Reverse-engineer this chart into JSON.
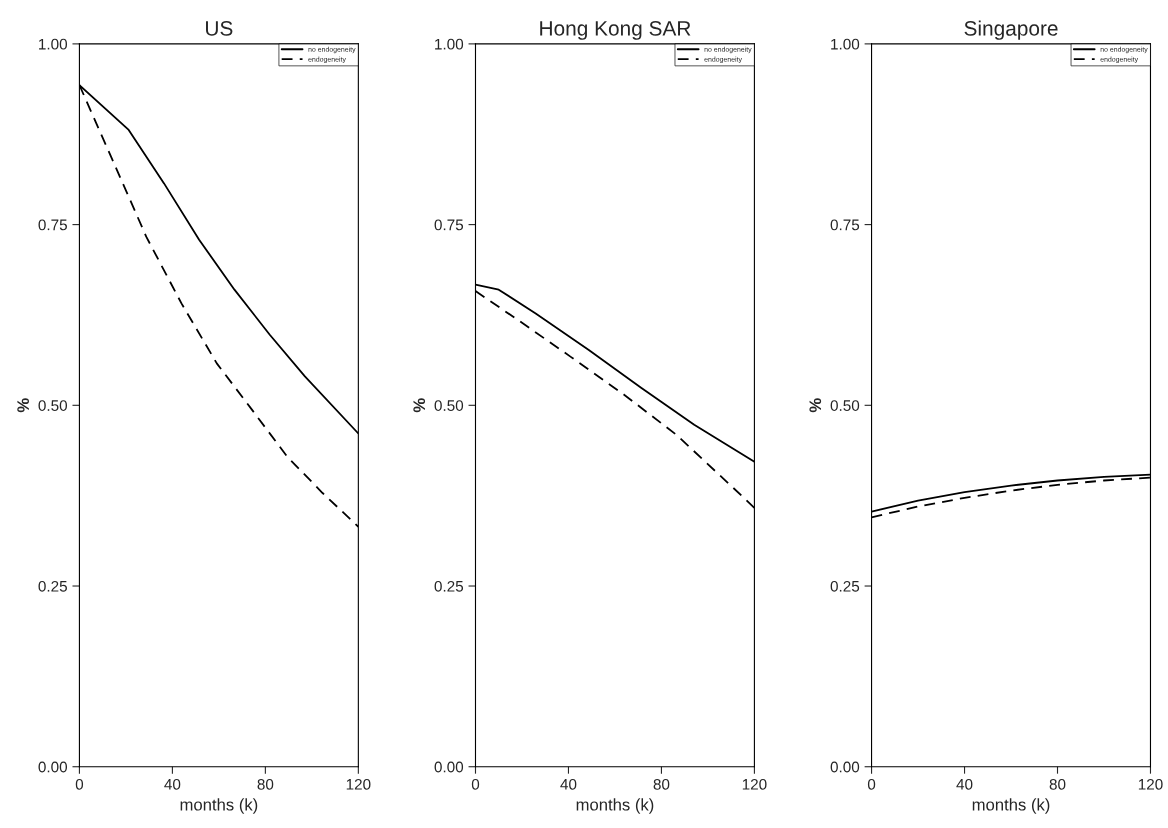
{
  "chart_data": [
    {
      "type": "line",
      "title": "US",
      "xlabel": "months (k)",
      "ylabel": "%",
      "xlim": [
        0,
        120
      ],
      "xticks": [
        0,
        40,
        80,
        120
      ],
      "ylim": [
        0,
        1
      ],
      "yticks": [
        {
          "value": 0,
          "label": "0.00"
        },
        {
          "value": 0.25,
          "label": "0.25"
        },
        {
          "value": 0.5,
          "label": "0.50"
        },
        {
          "value": 0.75,
          "label": "0.75"
        },
        {
          "value": 1,
          "label": "1.00"
        }
      ],
      "grid": false,
      "legend": "top right",
      "series": [
        {
          "name": "no endogeneity",
          "color": "#000000",
          "line_style": "solid",
          "x": [
            0,
            21.2,
            36.4,
            51.5,
            66.7,
            81.8,
            97,
            120
          ],
          "values": [
            0.943,
            0.881,
            0.807,
            0.729,
            0.66,
            0.598,
            0.54,
            0.461
          ]
        },
        {
          "name": "endogeneity",
          "color": "#000000",
          "line_style": "dashed",
          "x": [
            0,
            13.6,
            28.8,
            43.9,
            59.1,
            74.2,
            89.4,
            104.5,
            120
          ],
          "values": [
            0.943,
            0.844,
            0.733,
            0.641,
            0.558,
            0.494,
            0.429,
            0.379,
            0.332
          ]
        }
      ]
    },
    {
      "type": "line",
      "title": "Hong Kong SAR",
      "xlabel": "months (k)",
      "ylabel": "%",
      "xlim": [
        0,
        120
      ],
      "xticks": [
        0,
        40,
        80,
        120
      ],
      "ylim": [
        0,
        1
      ],
      "yticks": [
        {
          "value": 0,
          "label": "0.00"
        },
        {
          "value": 0.25,
          "label": "0.25"
        },
        {
          "value": 0.5,
          "label": "0.50"
        },
        {
          "value": 0.75,
          "label": "0.75"
        },
        {
          "value": 1,
          "label": "1.00"
        }
      ],
      "grid": false,
      "legend": "top right",
      "series": [
        {
          "name": "no endogeneity",
          "color": "#000000",
          "line_style": "solid",
          "x": [
            0,
            10,
            25.9,
            48.6,
            71.4,
            94.1,
            120
          ],
          "values": [
            0.667,
            0.66,
            0.627,
            0.577,
            0.524,
            0.473,
            0.422
          ]
        },
        {
          "name": "endogeneity",
          "color": "#000000",
          "line_style": "dashed",
          "x": [
            0,
            18.3,
            41,
            63.8,
            86.5,
            115.5,
            120
          ],
          "values": [
            0.658,
            0.618,
            0.567,
            0.515,
            0.459,
            0.372,
            0.358
          ]
        }
      ]
    },
    {
      "type": "line",
      "title": "Singapore",
      "xlabel": "months (k)",
      "ylabel": "%",
      "xlim": [
        0,
        120
      ],
      "xticks": [
        0,
        40,
        80,
        120
      ],
      "ylim": [
        0,
        1
      ],
      "yticks": [
        {
          "value": 0,
          "label": "0.00"
        },
        {
          "value": 0.25,
          "label": "0.25"
        },
        {
          "value": 0.5,
          "label": "0.50"
        },
        {
          "value": 0.75,
          "label": "0.75"
        },
        {
          "value": 1,
          "label": "1.00"
        }
      ],
      "grid": false,
      "legend": "top right",
      "series": [
        {
          "name": "no endogeneity",
          "color": "#000000",
          "line_style": "solid",
          "x": [
            0,
            20,
            40,
            60,
            80,
            100,
            120
          ],
          "values": [
            0.353,
            0.368,
            0.38,
            0.389,
            0.396,
            0.401,
            0.404
          ]
        },
        {
          "name": "endogeneity",
          "color": "#000000",
          "line_style": "dashed",
          "x": [
            0,
            20,
            40,
            60,
            80,
            100,
            120
          ],
          "values": [
            0.345,
            0.36,
            0.372,
            0.382,
            0.39,
            0.396,
            0.4
          ]
        }
      ]
    }
  ]
}
